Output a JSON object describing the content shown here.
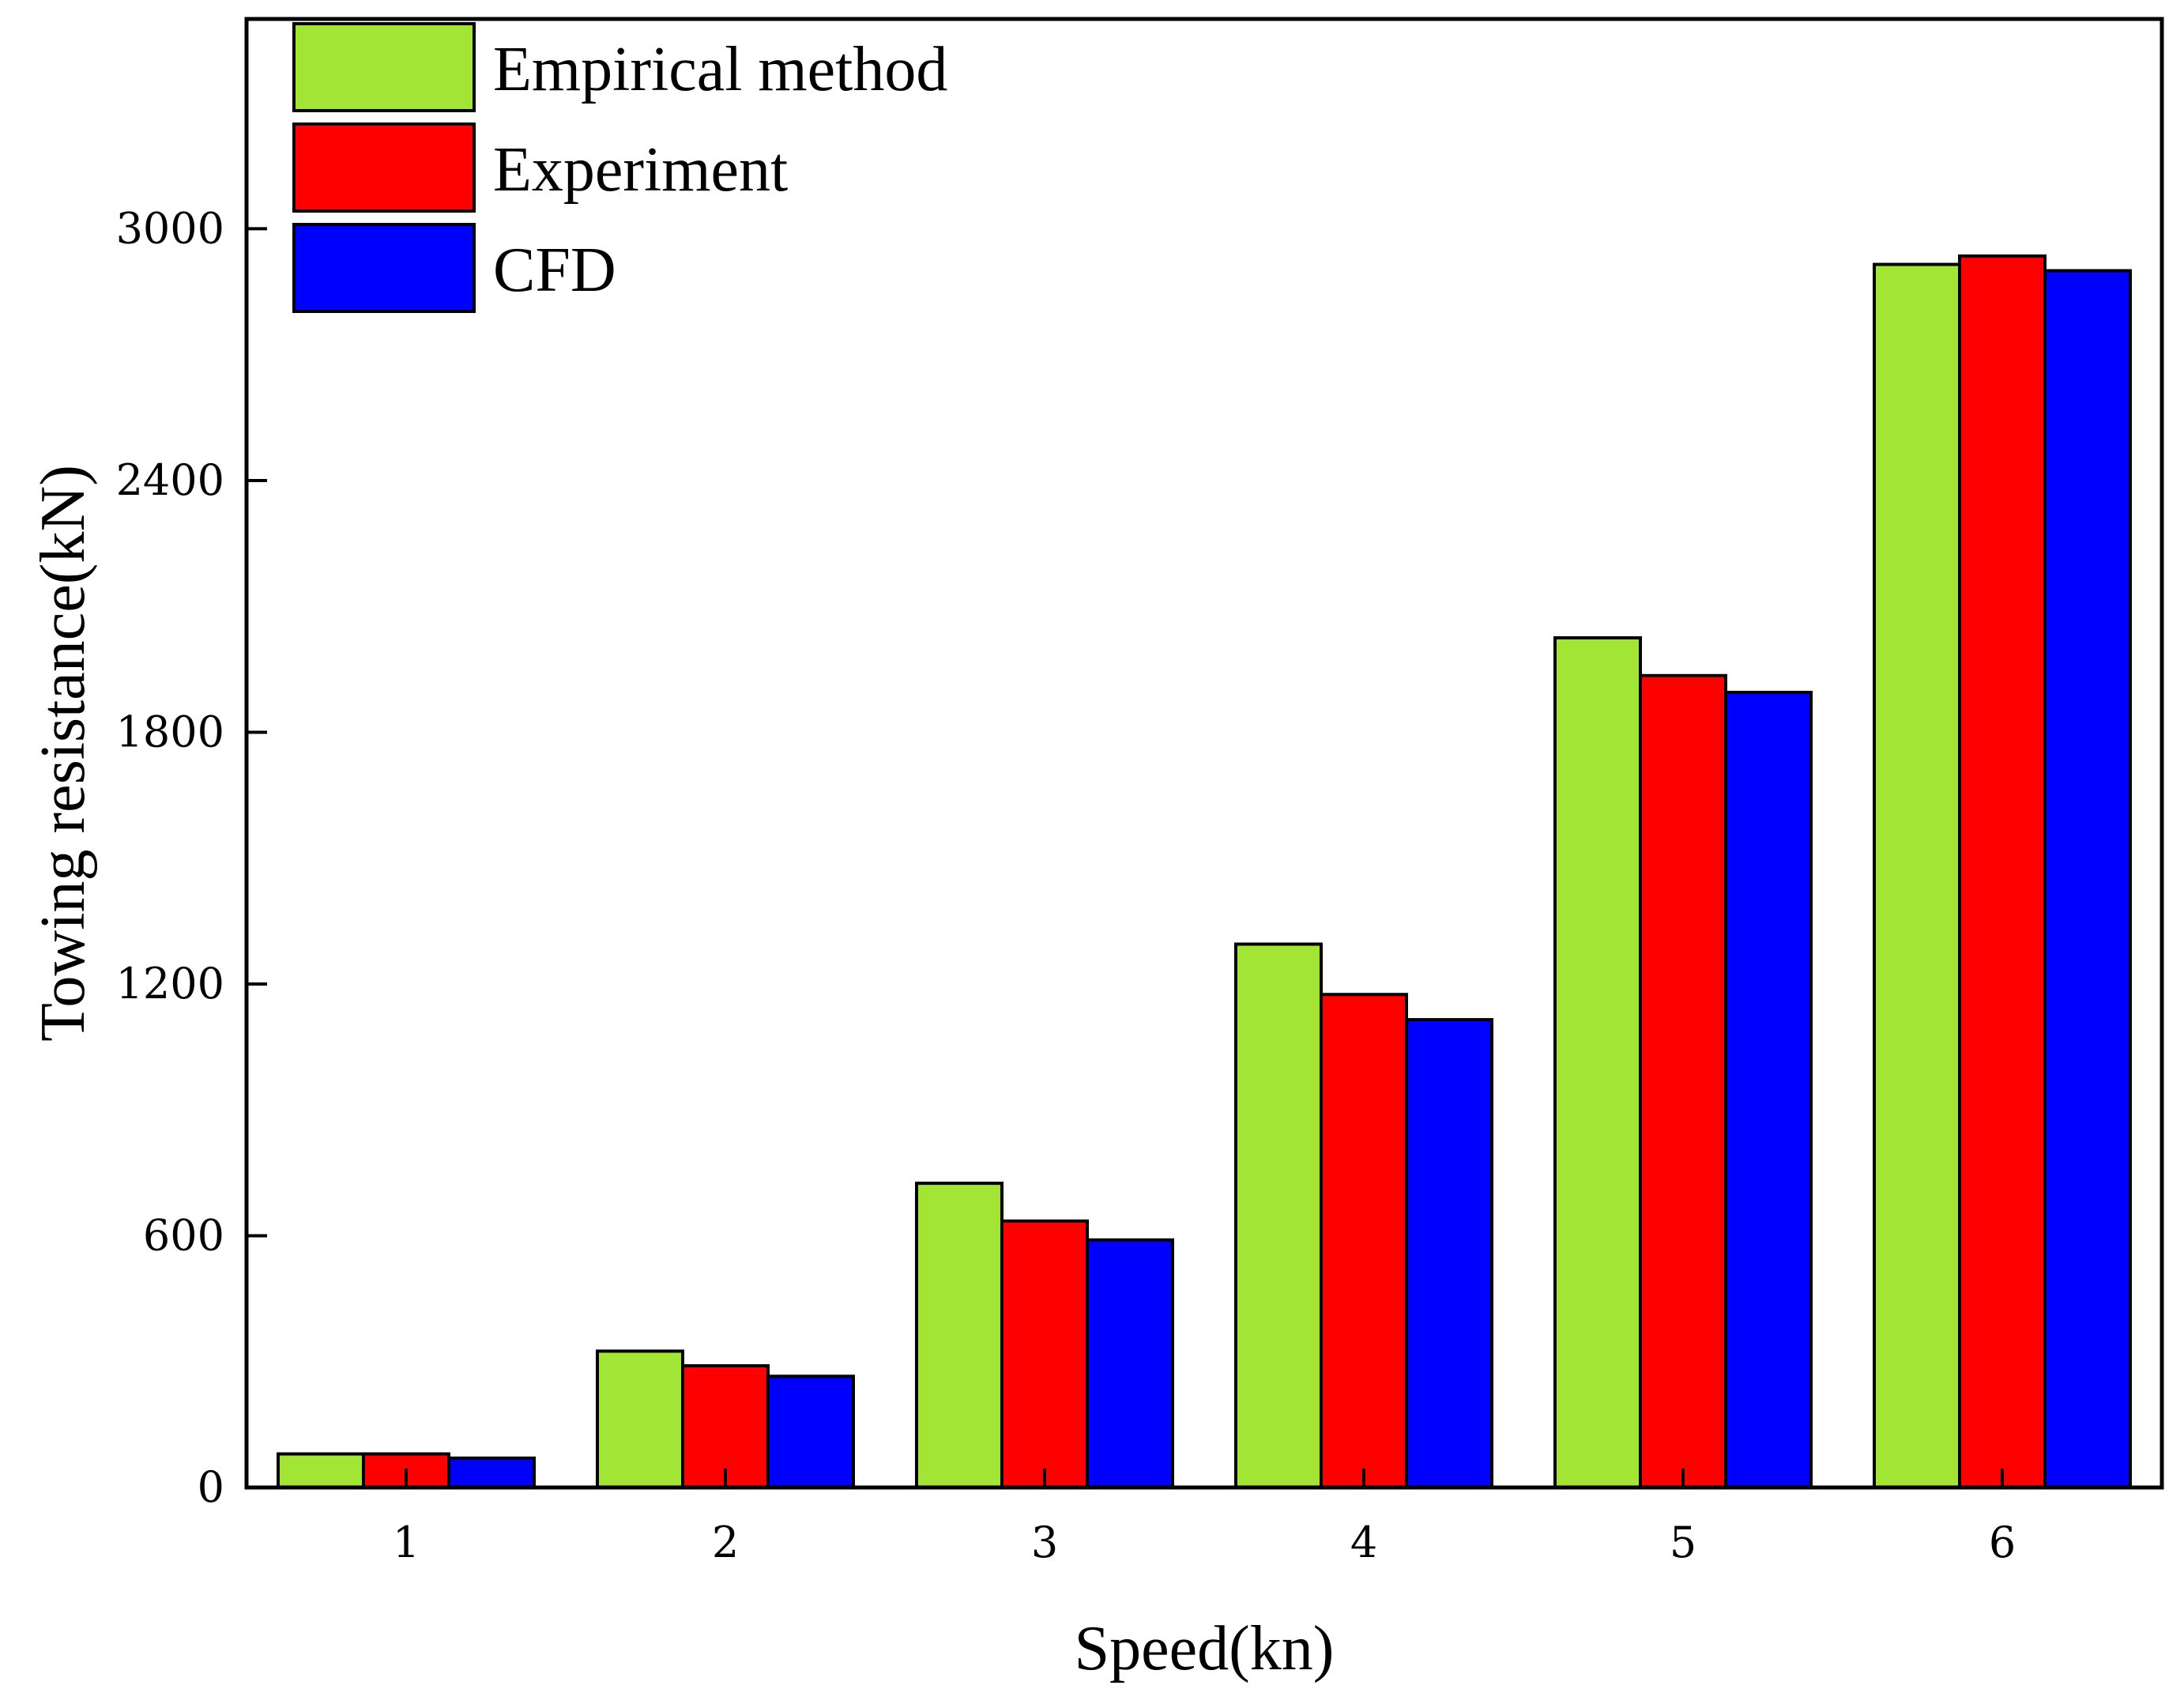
{
  "chart_data": {
    "type": "bar",
    "title": "",
    "xlabel": "Speed(kn)",
    "ylabel": "Towing resistance(kN)",
    "categories": [
      "1",
      "2",
      "3",
      "4",
      "5",
      "6"
    ],
    "ylim": [
      0,
      3500
    ],
    "yticks": [
      0,
      600,
      1200,
      1800,
      2400,
      3000
    ],
    "ytick_labels": [
      "0",
      "600",
      "1200",
      "1800",
      "2400",
      "3000"
    ],
    "grid": false,
    "legend_position": "top-left",
    "series": [
      {
        "name": "Empirical method",
        "color": "#a2e535",
        "values": [
          80,
          325,
          725,
          1295,
          2025,
          2915
        ]
      },
      {
        "name": "Experiment",
        "color": "#ff0000",
        "values": [
          80,
          290,
          635,
          1175,
          1935,
          2935
        ]
      },
      {
        "name": "CFD",
        "color": "#0000ff",
        "values": [
          70,
          265,
          590,
          1115,
          1895,
          2900
        ]
      }
    ]
  }
}
